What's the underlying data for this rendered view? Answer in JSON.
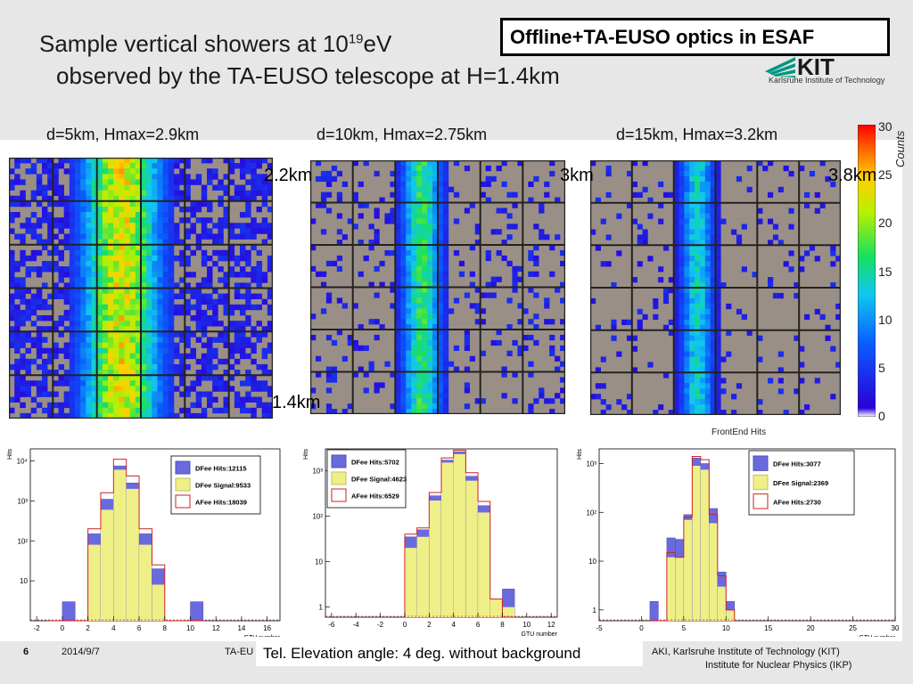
{
  "header": {
    "title_line1_a": "Sample vertical showers at 10",
    "title_line1_sup": "19",
    "title_line1_b": "eV",
    "title_line2": "observed by the TA-EUSO telescope at H=1.4km",
    "ta_box": "Offline+TA-EUSO optics in ESAF",
    "kit_wordmark": "KIT",
    "kit_subtitle": "Karlsruhe Institute of Technology"
  },
  "annotations": {
    "d5_height": "2.2km",
    "d10_height": "3km",
    "d15_height": "3.8km",
    "bottom_height": "1.4km",
    "frontend_label": "FrontEnd Hits"
  },
  "colorbar": {
    "label": "Counts",
    "ticks": [
      "30",
      "25",
      "20",
      "15",
      "10",
      "5",
      "0"
    ],
    "range": [
      0,
      30
    ]
  },
  "footer": {
    "page_number": "6",
    "date": "2014/9/7",
    "ta_text": "TA-EU",
    "note": "Tel. Elevation angle: 4 deg. without background",
    "institute_line1": "AKI,  Karlsruhe Institute of Technology (KIT)",
    "institute_line2": "Institute for Nuclear Physics (IKP)"
  },
  "colors": {
    "dfee_hits": "#6a6adf",
    "dfee_signal": "#efef88",
    "afee_hits": "#cc2222",
    "map_empty": "#9a8f86"
  },
  "chart_data": [
    {
      "type": "heatmap",
      "title": "d=5km, Hmax=2.9km",
      "description": "6x6 PMT grid, 8x8 pixels each; shower column in PMT column 4",
      "pmt_grid": [
        6,
        6
      ],
      "pixels_per_pmt": [
        8,
        8
      ],
      "peak_counts": 25,
      "zlim": [
        0,
        30
      ]
    },
    {
      "type": "heatmap",
      "title": "d=10km, Hmax=2.75km",
      "pmt_grid": [
        6,
        6
      ],
      "pixels_per_pmt": [
        8,
        8
      ],
      "peak_counts": 18,
      "zlim": [
        0,
        30
      ]
    },
    {
      "type": "heatmap",
      "title": "d=15km, Hmax=3.2km",
      "pmt_grid": [
        6,
        6
      ],
      "pixels_per_pmt": [
        8,
        8
      ],
      "peak_counts": 15,
      "zlim": [
        0,
        30
      ]
    },
    {
      "type": "bar",
      "ylabel": "Hits",
      "xlabel": "GTU number",
      "ylog": true,
      "xlim": [
        -2.5,
        17
      ],
      "ylim": [
        1,
        20000
      ],
      "xticks": [
        "-2",
        "0",
        "2",
        "4",
        "6",
        "8",
        "10",
        "12",
        "14",
        "16"
      ],
      "yticks": [
        "10",
        "10²",
        "10³",
        "10⁴"
      ],
      "legend": [
        "DFee Hits:12115",
        "DFee Signal:9533",
        "AFee Hits:18039"
      ],
      "bins": [
        -1,
        0,
        1,
        2,
        3,
        4,
        5,
        6,
        7,
        8,
        9,
        10
      ],
      "dfee_hits": [
        0,
        3,
        0,
        150,
        1100,
        7500,
        2800,
        150,
        20,
        0,
        0,
        3
      ],
      "dfee_signal": [
        0,
        0,
        0,
        80,
        600,
        6000,
        2000,
        80,
        8,
        0,
        0,
        0
      ],
      "afee_hits": [
        0,
        0,
        0,
        200,
        1600,
        11000,
        4200,
        200,
        25,
        0,
        0,
        0
      ]
    },
    {
      "type": "bar",
      "ylabel": "Hits",
      "xlabel": "GTU number",
      "ylog": true,
      "xlim": [
        -6.5,
        12.5
      ],
      "ylim": [
        0.6,
        3000
      ],
      "xticks": [
        "-6",
        "-4",
        "-2",
        "0",
        "2",
        "4",
        "6",
        "8",
        "10",
        "12"
      ],
      "yticks": [
        "1",
        "10",
        "10²",
        "10³"
      ],
      "legend": [
        "DFee Hits:5702",
        "DFee Signal:4623",
        "AFee Hits:6529"
      ],
      "bins": [
        0,
        1,
        2,
        3,
        4,
        5,
        6,
        7,
        8
      ],
      "dfee_hits": [
        35,
        50,
        280,
        1700,
        2600,
        750,
        170,
        1.5,
        2.5
      ],
      "dfee_signal": [
        20,
        35,
        220,
        1500,
        2300,
        600,
        120,
        1.5,
        1
      ],
      "afee_hits": [
        40,
        55,
        330,
        1900,
        2800,
        900,
        210,
        1.5,
        0
      ]
    },
    {
      "type": "bar",
      "ylabel": "Hits",
      "xlabel": "GTU number",
      "ylog": true,
      "xlim": [
        -5,
        30
      ],
      "ylim": [
        0.6,
        2000
      ],
      "xticks": [
        "-5",
        "0",
        "5",
        "10",
        "15",
        "20",
        "25",
        "30"
      ],
      "yticks": [
        "1",
        "10",
        "10²",
        "10³"
      ],
      "legend": [
        "DFee Hits:3077",
        "DFee Signal:2369",
        "AFee Hits:2730"
      ],
      "bins": [
        1,
        2,
        3,
        4,
        5,
        6,
        7,
        8,
        9,
        10
      ],
      "dfee_hits": [
        1.5,
        0,
        30,
        28,
        90,
        1300,
        1000,
        120,
        6,
        1.5
      ],
      "dfee_signal": [
        0,
        0,
        12,
        12,
        70,
        900,
        750,
        60,
        3,
        1
      ],
      "afee_hits": [
        0,
        0,
        15,
        12,
        80,
        1400,
        1200,
        90,
        5,
        1
      ]
    }
  ]
}
